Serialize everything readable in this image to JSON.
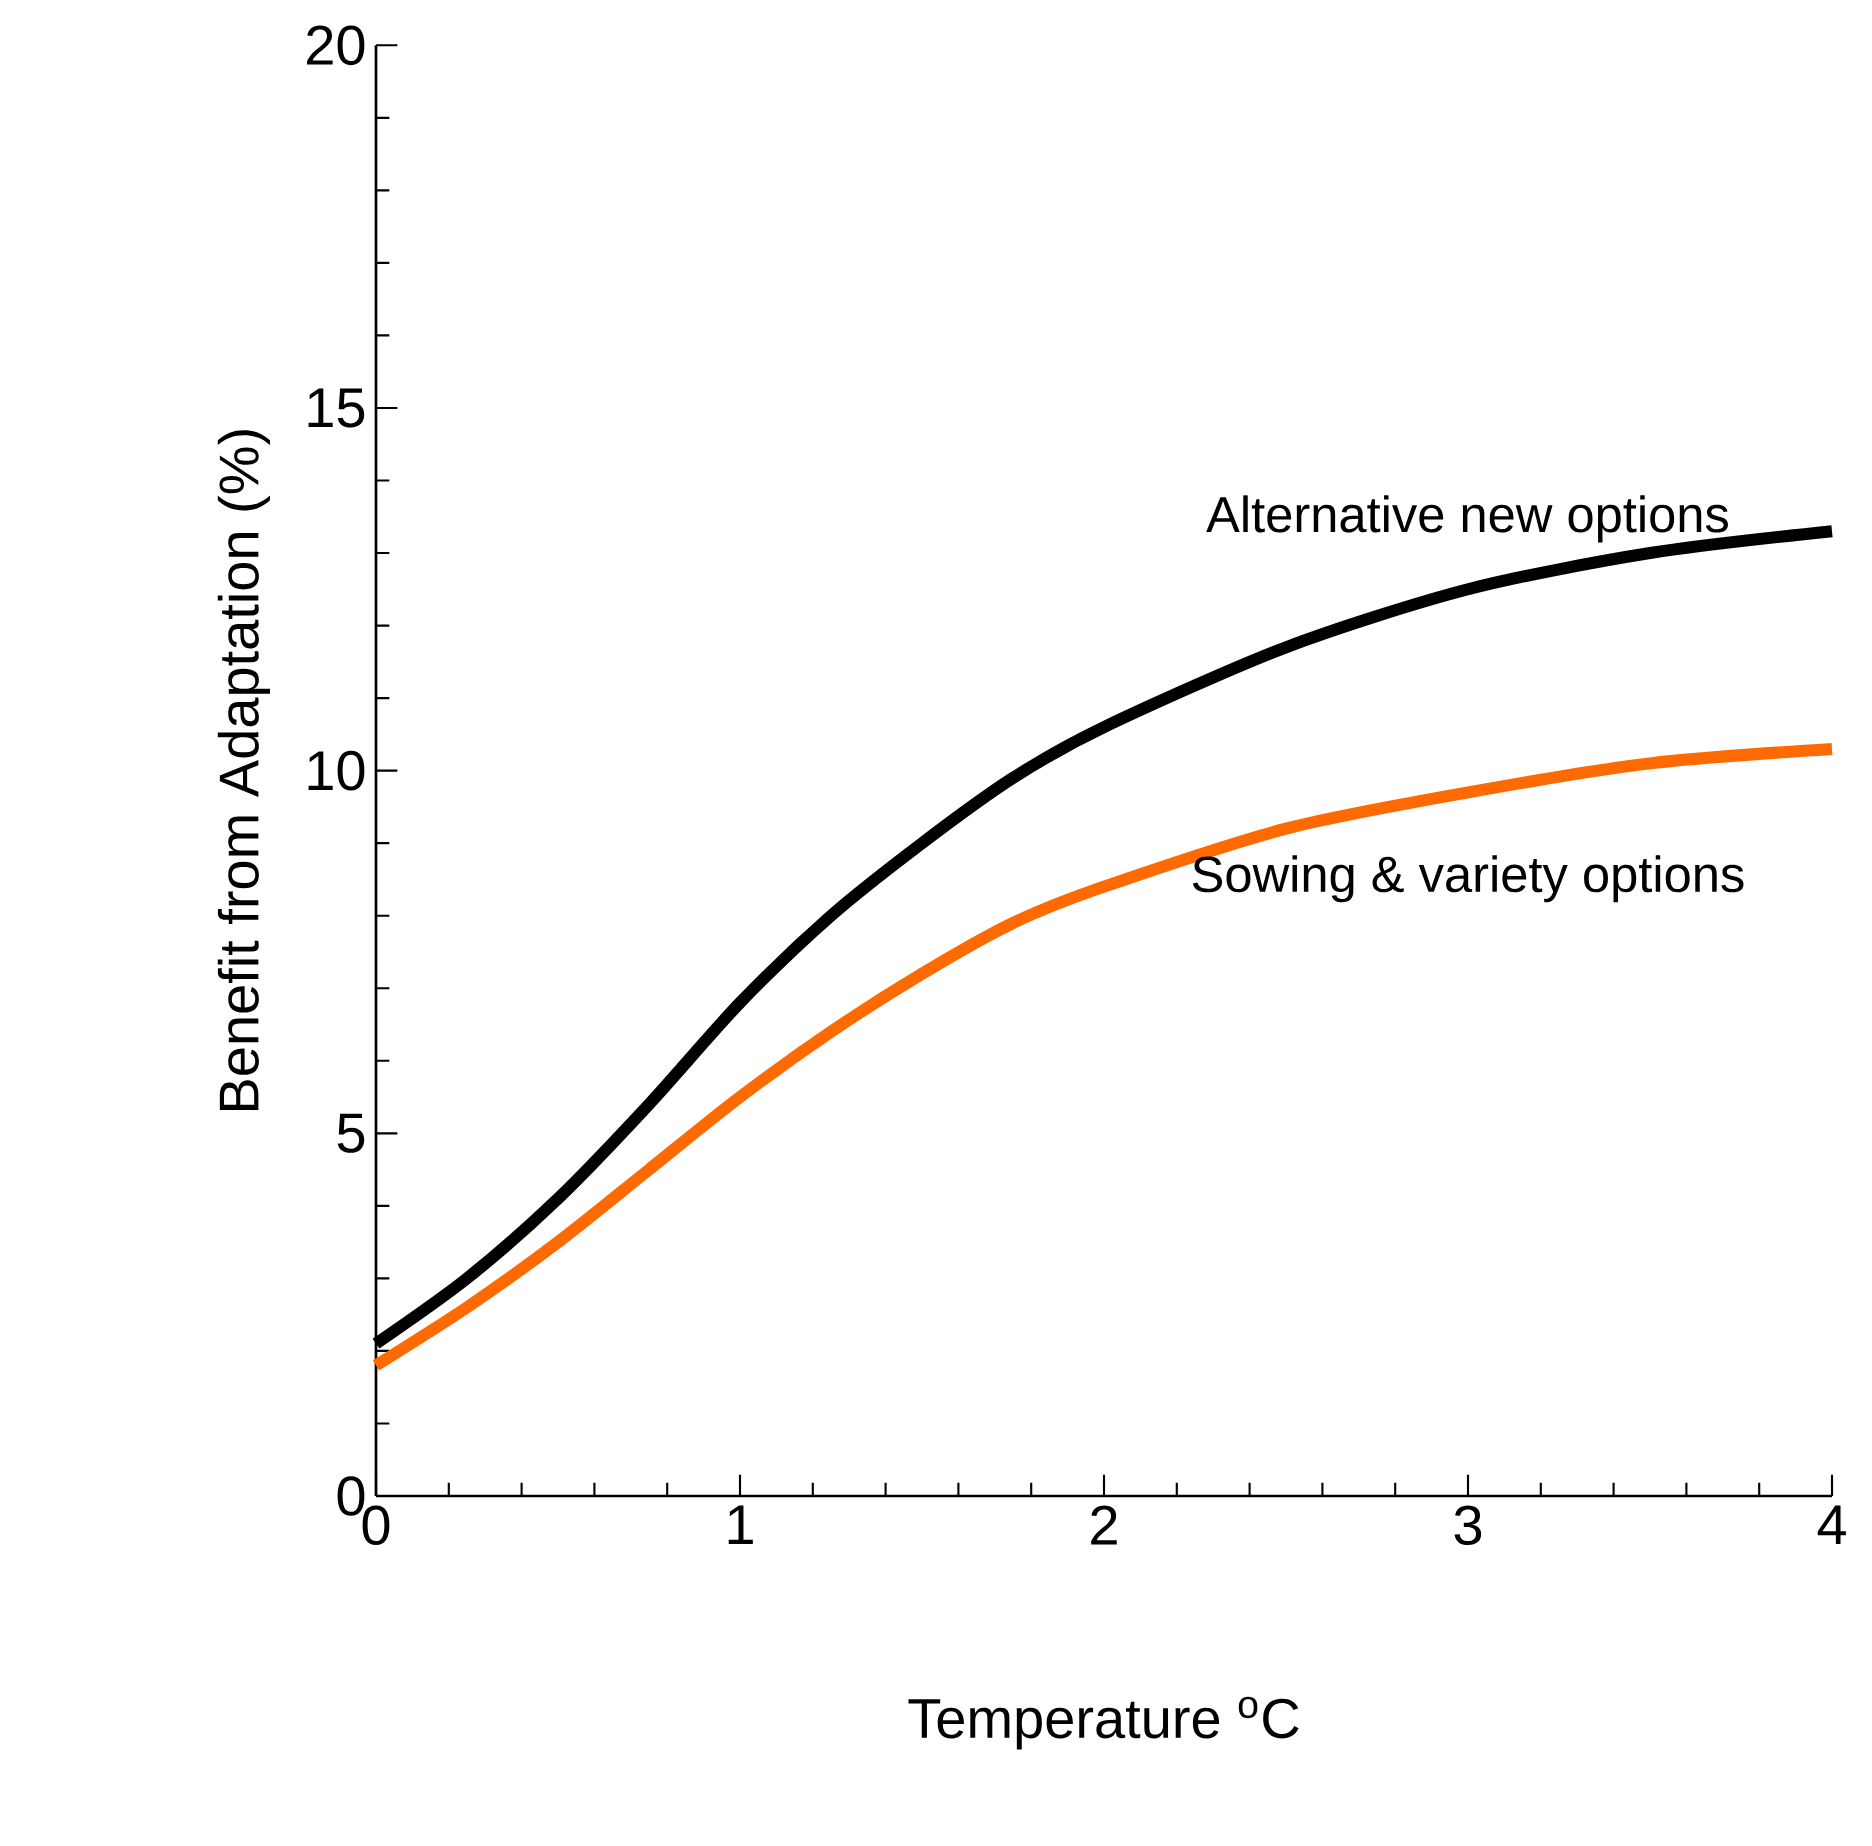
{
  "chart_data": {
    "type": "line",
    "xlabel": "Temperature $^{o}$C",
    "ylabel": "Benefit from Adaptation (%)",
    "xlim": [
      0,
      4
    ],
    "ylim": [
      0,
      20
    ],
    "xticks": [
      0,
      1,
      2,
      3,
      4
    ],
    "yticks": [
      0,
      5,
      10,
      15,
      20
    ],
    "grid": false,
    "legend": false,
    "marker": "none",
    "line_style": "solid",
    "series": [
      {
        "name": "Alternative new options",
        "color": "#000000",
        "x": [
          0,
          0.25,
          0.5,
          0.75,
          1,
          1.25,
          1.5,
          1.75,
          2,
          2.5,
          3,
          3.5,
          4
        ],
        "values": [
          2.1,
          3.0,
          4.1,
          5.4,
          6.8,
          8.0,
          9.0,
          9.9,
          10.6,
          11.7,
          12.5,
          13.0,
          13.3
        ]
      },
      {
        "name": "Sowing & variety options",
        "color": "#ff6a00",
        "x": [
          0,
          0.25,
          0.5,
          0.75,
          1,
          1.25,
          1.5,
          1.75,
          2,
          2.5,
          3,
          3.5,
          4
        ],
        "values": [
          1.8,
          2.6,
          3.5,
          4.5,
          5.5,
          6.4,
          7.2,
          7.9,
          8.4,
          9.2,
          9.7,
          10.1,
          10.3
        ]
      }
    ]
  }
}
